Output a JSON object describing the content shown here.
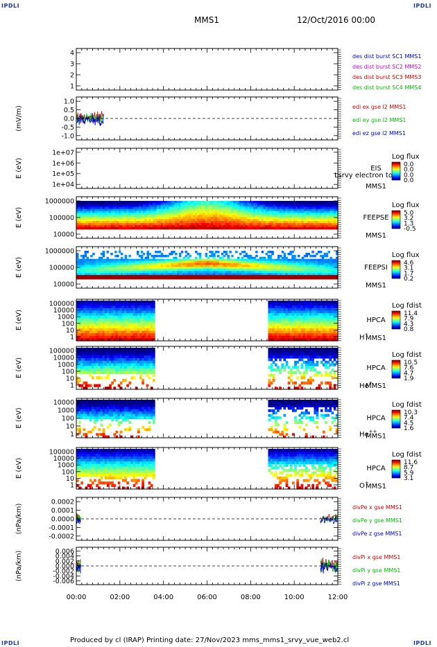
{
  "header": {
    "corner_tl": "IPDLI",
    "corner_tr": "IPDLI",
    "corner_bl": "IPDLI",
    "corner_br": "IPDLI",
    "title": "MMS1",
    "date": "12/Oct/2016 00:00"
  },
  "footer": "Produced by cl (IRAP)   Printing date: 27/Nov/2023   mms_mms1_srvy_vue_web2.cl",
  "chart_data": {
    "type": "multi-panel-time-series",
    "x_ticks": [
      "00:00",
      "02:00",
      "04:00",
      "06:00",
      "08:00",
      "10:00",
      "12:00"
    ],
    "panels": [
      {
        "id": "des",
        "ylabel": "",
        "yticks": [
          "4",
          "3",
          "2",
          "1"
        ],
        "ylim": [
          0.6,
          4.4
        ],
        "side_labels": [
          {
            "text": "des dist burst SC1 MMS1",
            "color": "#0000cc"
          },
          {
            "text": "des dist burst SC2 MMS2",
            "color": "#cc00cc"
          },
          {
            "text": "des dist burst SC3 MMS3",
            "color": "#cc0000"
          },
          {
            "text": "des dist burst SC4 MMS4",
            "color": "#00bb00"
          }
        ]
      },
      {
        "id": "edi",
        "ylabel": "(mV/m)",
        "yticks": [
          "1.0",
          "0.5",
          "0.0",
          "-0.5",
          "-1.0"
        ],
        "ylim": [
          -1.3,
          1.3
        ],
        "zero_line": true,
        "side_labels": [
          {
            "text": "edi ex gse l2 MMS1",
            "color": "#cc0000"
          },
          {
            "text": "edi ey gse l2 MMS1",
            "color": "#00bb00"
          },
          {
            "text": "edi ez gse l2 MMS1",
            "color": "#0000cc"
          }
        ],
        "data_span_hours": [
          0.0,
          1.25
        ]
      },
      {
        "id": "eis",
        "ylabel": "E (eV)",
        "yticks": [
          "1e+07",
          "1e+06",
          "1e+05",
          "1e+04"
        ],
        "side_labels": [
          {
            "text": "EIS",
            "color": "#000"
          },
          {
            "text": "MMS1",
            "color": "#000"
          }
        ],
        "overlap_text": "Lsrvy electron to",
        "colorbar": {
          "title": "Log flux",
          "ticks": [
            "0.0",
            "0.0",
            "0.0",
            "0.0"
          ]
        }
      },
      {
        "id": "feeps_e",
        "ylabel": "E (eV)",
        "yticks": [
          "1000000",
          "100000",
          "10000"
        ],
        "side_labels": [
          {
            "text": "FEEPSE",
            "color": "#000"
          },
          {
            "text": "MMS1",
            "color": "#000"
          }
        ],
        "colorbar": {
          "title": "Log flux",
          "ticks": [
            "5.0",
            "3.2",
            "1.3",
            "-0.5"
          ]
        }
      },
      {
        "id": "feeps_i",
        "ylabel": "E (eV)",
        "yticks": [
          "1000000",
          "100000",
          "10000"
        ],
        "side_labels": [
          {
            "text": "FEEPSI",
            "color": "#000"
          },
          {
            "text": "MMS1",
            "color": "#000"
          }
        ],
        "colorbar": {
          "title": "Log flux",
          "ticks": [
            "4.6",
            "3.1",
            "1.7",
            "0.2"
          ]
        }
      },
      {
        "id": "hpca_h",
        "ylabel": "E (eV)",
        "yticks": [
          "100000",
          "10000",
          "1000",
          "100",
          "10",
          "1"
        ],
        "side_labels": [
          {
            "text": "HPCA",
            "color": "#000"
          },
          {
            "text": "MMS1",
            "color": "#000"
          }
        ],
        "species": "H",
        "species_sup": "+",
        "colorbar": {
          "title": "Log fdist",
          "ticks": [
            "11.4",
            "7.9",
            "4.3",
            "0.8"
          ]
        },
        "data_spans_hours": [
          [
            0.0,
            3.6
          ],
          [
            8.8,
            12.0
          ]
        ]
      },
      {
        "id": "hpca_he1",
        "ylabel": "E (eV)",
        "yticks": [
          "100000",
          "10000",
          "1000",
          "100",
          "10",
          "1"
        ],
        "side_labels": [
          {
            "text": "HPCA",
            "color": "#000"
          },
          {
            "text": "MMS1",
            "color": "#000"
          }
        ],
        "species": "He",
        "species_sup": "+",
        "colorbar": {
          "title": "Log fdist",
          "ticks": [
            "10.5",
            "7.6",
            "4.7",
            "1.9"
          ]
        },
        "data_spans_hours": [
          [
            0.0,
            3.6
          ],
          [
            8.8,
            12.0
          ]
        ]
      },
      {
        "id": "hpca_he2",
        "ylabel": "E (eV)",
        "yticks": [
          "10000",
          "1000",
          "100",
          "10",
          "1"
        ],
        "side_labels": [
          {
            "text": "HPCA",
            "color": "#000"
          },
          {
            "text": "MMS1",
            "color": "#000"
          }
        ],
        "species": "He",
        "species_sup": "++",
        "colorbar": {
          "title": "Log fdist",
          "ticks": [
            "10.3",
            "7.4",
            "4.5",
            "1.6"
          ]
        },
        "data_spans_hours": [
          [
            0.0,
            3.6
          ],
          [
            8.8,
            12.0
          ]
        ]
      },
      {
        "id": "hpca_o",
        "ylabel": "E (eV)",
        "yticks": [
          "100000",
          "10000",
          "1000",
          "100",
          "10",
          "1"
        ],
        "side_labels": [
          {
            "text": "HPCA",
            "color": "#000"
          },
          {
            "text": "MMS1",
            "color": "#000"
          }
        ],
        "species": "O",
        "species_sup": "+",
        "colorbar": {
          "title": "Log fdist",
          "ticks": [
            "11.6",
            "8.7",
            "5.9",
            "3.1"
          ]
        },
        "data_spans_hours": [
          [
            0.0,
            3.6
          ],
          [
            8.8,
            12.0
          ]
        ]
      },
      {
        "id": "divpe",
        "ylabel": "(nPa/km)",
        "yticks": [
          "0.0002",
          "0.0001",
          "0.0000",
          "-0.0001",
          "-0.0002"
        ],
        "ylim": [
          -0.00025,
          0.00025
        ],
        "zero_line": true,
        "side_labels": [
          {
            "text": "divPe x gse MMS1",
            "color": "#cc0000"
          },
          {
            "text": "divPe y gse MMS1",
            "color": "#00bb00"
          },
          {
            "text": "divPe z gse MMS1",
            "color": "#0000cc"
          }
        ],
        "data_spans_hours": [
          [
            0.0,
            0.2
          ],
          [
            11.2,
            12.0
          ]
        ]
      },
      {
        "id": "divpi",
        "ylabel": "(nPa/km)",
        "yticks": [
          "0.006",
          "0.004",
          "0.002",
          "0.000",
          "-0.002",
          "-0.004",
          "-0.006"
        ],
        "ylim": [
          -0.007,
          0.007
        ],
        "zero_line": true,
        "side_labels": [
          {
            "text": "divPi x gse MMS1",
            "color": "#cc0000"
          },
          {
            "text": "divPi y gse MMS1",
            "color": "#00bb00"
          },
          {
            "text": "divPi z gse MMS1",
            "color": "#0000cc"
          }
        ],
        "data_spans_hours": [
          [
            0.0,
            0.2
          ],
          [
            11.2,
            12.0
          ]
        ]
      }
    ]
  }
}
